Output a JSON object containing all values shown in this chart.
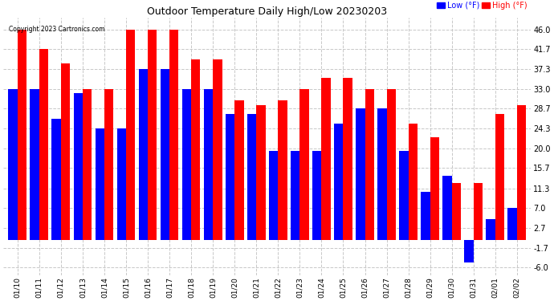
{
  "title": "Outdoor Temperature Daily High/Low 20230203",
  "copyright": "Copyright 2023 Cartronics.com",
  "yticks": [
    46.0,
    41.7,
    37.3,
    33.0,
    28.7,
    24.3,
    20.0,
    15.7,
    11.3,
    7.0,
    2.7,
    -1.7,
    -6.0
  ],
  "ylim": [
    -7.8,
    48.5
  ],
  "categories": [
    "01/10",
    "01/11",
    "01/12",
    "01/13",
    "01/14",
    "01/15",
    "01/16",
    "01/17",
    "01/18",
    "01/19",
    "01/20",
    "01/21",
    "01/22",
    "01/23",
    "01/24",
    "01/25",
    "01/26",
    "01/27",
    "01/28",
    "01/29",
    "01/30",
    "01/31",
    "02/01",
    "02/02"
  ],
  "high_values": [
    46.0,
    41.7,
    38.5,
    33.0,
    33.0,
    46.0,
    46.0,
    46.0,
    39.5,
    39.5,
    30.5,
    29.5,
    30.5,
    33.0,
    35.5,
    35.5,
    33.0,
    33.0,
    25.5,
    22.5,
    12.5,
    12.5,
    27.5,
    29.5
  ],
  "low_values": [
    33.0,
    33.0,
    26.5,
    32.0,
    24.3,
    24.3,
    37.3,
    37.3,
    33.0,
    33.0,
    27.5,
    27.5,
    19.5,
    19.5,
    19.5,
    25.5,
    28.7,
    28.7,
    19.5,
    10.5,
    14.0,
    -5.0,
    4.5,
    7.0
  ],
  "high_color": "#ff0000",
  "low_color": "#0000ff",
  "background_color": "#ffffff",
  "grid_color": "#c8c8c8",
  "legend_low_label": "Low",
  "legend_high_label": "High",
  "legend_unit": "(°F)"
}
